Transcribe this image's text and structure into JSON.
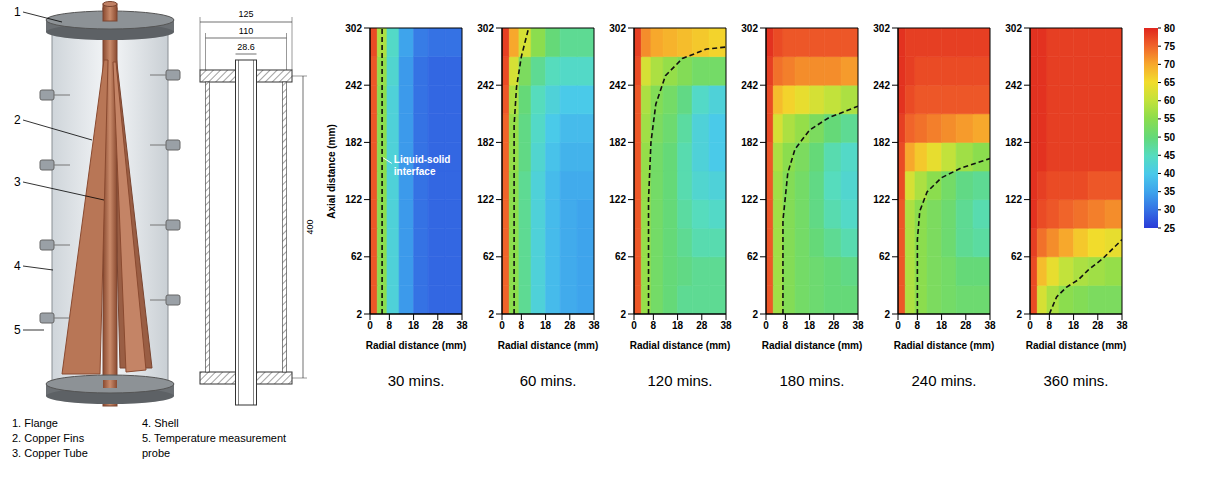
{
  "diagram": {
    "callouts": [
      "1",
      "2",
      "3",
      "4",
      "5"
    ],
    "dimensions": [
      "125",
      "110",
      "28.6",
      "400"
    ],
    "parts": [
      "1. Flange",
      "2. Copper Fins",
      "3. Copper Tube",
      "4. Shell",
      "5. Temperature measurement probe"
    ]
  },
  "colorbar": {
    "range": [
      25,
      80
    ],
    "ticks": [
      25,
      30,
      35,
      40,
      45,
      50,
      55,
      60,
      65,
      70,
      75,
      80
    ]
  },
  "chart_data": [
    {
      "type": "heatmap",
      "title": "30 mins.",
      "x_label": "Radial distance (mm)",
      "y_label": "Axial distance (mm)",
      "annotation": "Liquid-solid interface",
      "xlim": [
        0,
        38
      ],
      "ylim": [
        2,
        302
      ],
      "xticks": [
        0,
        8,
        18,
        28,
        38
      ],
      "yticks": [
        2,
        62,
        122,
        182,
        242,
        302
      ],
      "x_edges": [
        0,
        3,
        7,
        12,
        18,
        24,
        31,
        38
      ],
      "y_edges": [
        2,
        32,
        62,
        92,
        122,
        152,
        182,
        212,
        242,
        272,
        302
      ],
      "cells": [
        [
          76,
          55,
          42,
          34,
          30,
          29,
          29
        ],
        [
          76,
          55,
          42,
          34,
          30,
          29,
          29
        ],
        [
          76,
          55,
          42,
          34,
          30,
          29,
          29
        ],
        [
          76,
          55,
          42,
          34,
          30,
          29,
          29
        ],
        [
          76,
          55,
          42,
          34,
          30,
          29,
          29
        ],
        [
          76,
          55,
          42,
          34,
          30,
          29,
          29
        ],
        [
          76,
          55,
          42,
          34,
          30,
          29,
          29
        ],
        [
          76,
          55,
          42,
          34,
          30,
          29,
          29
        ],
        [
          76,
          56,
          43,
          34,
          30,
          29,
          29
        ],
        [
          77,
          58,
          44,
          35,
          31,
          30,
          30
        ]
      ],
      "interface": {
        "r": [
          5,
          5
        ],
        "z": [
          2,
          302
        ]
      }
    },
    {
      "type": "heatmap",
      "title": "60 mins.",
      "x_label": "Radial distance (mm)",
      "xlim": [
        0,
        38
      ],
      "ylim": [
        2,
        302
      ],
      "xticks": [
        0,
        8,
        18,
        28,
        38
      ],
      "yticks": [
        2,
        62,
        122,
        182,
        242,
        302
      ],
      "x_edges": [
        0,
        3,
        7,
        12,
        18,
        24,
        31,
        38
      ],
      "y_edges": [
        2,
        32,
        62,
        92,
        122,
        152,
        182,
        212,
        242,
        272,
        302
      ],
      "cells": [
        [
          75,
          55,
          48,
          42,
          38,
          36,
          35
        ],
        [
          75,
          55,
          48,
          42,
          38,
          36,
          35
        ],
        [
          75,
          55,
          48,
          42,
          38,
          36,
          35
        ],
        [
          75,
          55,
          48,
          42,
          38,
          36,
          35
        ],
        [
          75,
          55,
          48,
          42,
          38,
          36,
          36
        ],
        [
          75,
          56,
          49,
          43,
          39,
          37,
          37
        ],
        [
          75,
          56,
          49,
          44,
          40,
          38,
          38
        ],
        [
          76,
          58,
          50,
          45,
          42,
          40,
          40
        ],
        [
          77,
          62,
          53,
          48,
          45,
          44,
          44
        ],
        [
          78,
          70,
          62,
          55,
          50,
          48,
          48
        ]
      ],
      "interface": {
        "r": [
          5,
          5,
          6,
          8,
          11
        ],
        "z": [
          2,
          200,
          240,
          272,
          302
        ]
      }
    },
    {
      "type": "heatmap",
      "title": "120 mins.",
      "x_label": "Radial distance (mm)",
      "xlim": [
        0,
        38
      ],
      "ylim": [
        2,
        302
      ],
      "xticks": [
        0,
        8,
        18,
        28,
        38
      ],
      "yticks": [
        2,
        62,
        122,
        182,
        242,
        302
      ],
      "x_edges": [
        0,
        3,
        7,
        12,
        18,
        24,
        31,
        38
      ],
      "y_edges": [
        2,
        32,
        62,
        92,
        122,
        152,
        182,
        212,
        242,
        272,
        302
      ],
      "cells": [
        [
          76,
          56,
          52,
          50,
          48,
          48,
          48
        ],
        [
          76,
          56,
          52,
          50,
          49,
          48,
          48
        ],
        [
          76,
          56,
          52,
          50,
          48,
          46,
          46
        ],
        [
          76,
          56,
          52,
          50,
          47,
          45,
          44
        ],
        [
          76,
          56,
          52,
          50,
          46,
          43,
          42
        ],
        [
          76,
          56,
          52,
          50,
          46,
          42,
          40
        ],
        [
          76,
          57,
          53,
          51,
          47,
          42,
          40
        ],
        [
          76,
          58,
          54,
          52,
          49,
          44,
          42
        ],
        [
          77,
          62,
          58,
          56,
          54,
          52,
          52
        ],
        [
          78,
          72,
          70,
          69,
          68,
          67,
          66
        ]
      ],
      "interface": {
        "r": [
          6,
          6,
          7,
          9,
          13,
          20,
          30,
          38
        ],
        "z": [
          2,
          122,
          182,
          222,
          252,
          270,
          280,
          282
        ]
      }
    },
    {
      "type": "heatmap",
      "title": "180 mins.",
      "x_label": "Radial distance (mm)",
      "xlim": [
        0,
        38
      ],
      "ylim": [
        2,
        302
      ],
      "xticks": [
        0,
        8,
        18,
        28,
        38
      ],
      "yticks": [
        2,
        62,
        122,
        182,
        242,
        302
      ],
      "x_edges": [
        0,
        3,
        7,
        12,
        18,
        24,
        31,
        38
      ],
      "y_edges": [
        2,
        32,
        62,
        92,
        122,
        152,
        182,
        212,
        242,
        272,
        302
      ],
      "cells": [
        [
          76,
          57,
          54,
          52,
          51,
          50,
          50
        ],
        [
          76,
          57,
          54,
          52,
          51,
          50,
          49
        ],
        [
          76,
          57,
          54,
          52,
          50,
          48,
          46
        ],
        [
          76,
          57,
          54,
          52,
          49,
          46,
          44
        ],
        [
          76,
          57,
          54,
          52,
          49,
          45,
          43
        ],
        [
          76,
          58,
          55,
          53,
          50,
          46,
          44
        ],
        [
          77,
          62,
          58,
          56,
          53,
          50,
          48
        ],
        [
          77,
          68,
          66,
          64,
          62,
          60,
          58
        ],
        [
          78,
          74,
          73,
          72,
          72,
          72,
          71
        ],
        [
          79,
          77,
          76,
          76,
          76,
          76,
          76
        ]
      ],
      "interface": {
        "r": [
          7,
          7,
          9,
          12,
          18,
          26,
          32,
          38
        ],
        "z": [
          2,
          100,
          150,
          175,
          195,
          208,
          214,
          220
        ]
      }
    },
    {
      "type": "heatmap",
      "title": "240 mins.",
      "x_label": "Radial distance (mm)",
      "xlim": [
        0,
        38
      ],
      "ylim": [
        2,
        302
      ],
      "xticks": [
        0,
        8,
        18,
        28,
        38
      ],
      "yticks": [
        2,
        62,
        122,
        182,
        242,
        302
      ],
      "x_edges": [
        0,
        3,
        7,
        12,
        18,
        24,
        31,
        38
      ],
      "y_edges": [
        2,
        32,
        62,
        92,
        122,
        152,
        182,
        212,
        242,
        272,
        302
      ],
      "cells": [
        [
          76,
          58,
          55,
          53,
          52,
          51,
          51
        ],
        [
          76,
          58,
          55,
          53,
          52,
          50,
          50
        ],
        [
          76,
          58,
          55,
          53,
          51,
          48,
          47
        ],
        [
          76,
          58,
          55,
          53,
          51,
          48,
          46
        ],
        [
          77,
          62,
          58,
          55,
          52,
          49,
          48
        ],
        [
          77,
          70,
          67,
          64,
          60,
          57,
          55
        ],
        [
          78,
          75,
          74,
          73,
          72,
          71,
          70
        ],
        [
          79,
          77,
          76,
          76,
          76,
          76,
          76
        ],
        [
          79,
          78,
          77,
          77,
          77,
          77,
          77
        ],
        [
          79,
          78,
          78,
          78,
          78,
          78,
          78
        ]
      ],
      "interface": {
        "r": [
          8,
          8,
          9,
          12,
          18,
          26,
          38
        ],
        "z": [
          2,
          80,
          110,
          130,
          145,
          155,
          165
        ]
      }
    },
    {
      "type": "heatmap",
      "title": "360 mins.",
      "x_label": "Radial distance (mm)",
      "xlim": [
        0,
        38
      ],
      "ylim": [
        2,
        302
      ],
      "xticks": [
        0,
        8,
        18,
        28,
        38
      ],
      "yticks": [
        2,
        62,
        122,
        182,
        242,
        302
      ],
      "x_edges": [
        0,
        3,
        7,
        12,
        18,
        24,
        31,
        38
      ],
      "y_edges": [
        2,
        32,
        62,
        92,
        122,
        152,
        182,
        212,
        242,
        272,
        302
      ],
      "cells": [
        [
          77,
          62,
          58,
          55,
          54,
          53,
          53
        ],
        [
          77,
          68,
          64,
          60,
          58,
          57,
          56
        ],
        [
          78,
          74,
          72,
          70,
          67,
          65,
          64
        ],
        [
          79,
          77,
          76,
          75,
          74,
          73,
          72
        ],
        [
          79,
          78,
          77,
          77,
          77,
          76,
          76
        ],
        [
          79,
          79,
          78,
          78,
          78,
          78,
          78
        ],
        [
          79,
          79,
          78,
          78,
          78,
          78,
          78
        ],
        [
          79,
          79,
          78,
          78,
          78,
          78,
          78
        ],
        [
          79,
          79,
          78,
          78,
          78,
          78,
          78
        ],
        [
          79,
          79,
          78,
          78,
          78,
          78,
          78
        ]
      ],
      "interface": {
        "r": [
          8,
          11,
          15,
          20,
          24,
          30,
          34,
          38
        ],
        "z": [
          2,
          20,
          30,
          38,
          48,
          60,
          70,
          80
        ]
      }
    }
  ]
}
